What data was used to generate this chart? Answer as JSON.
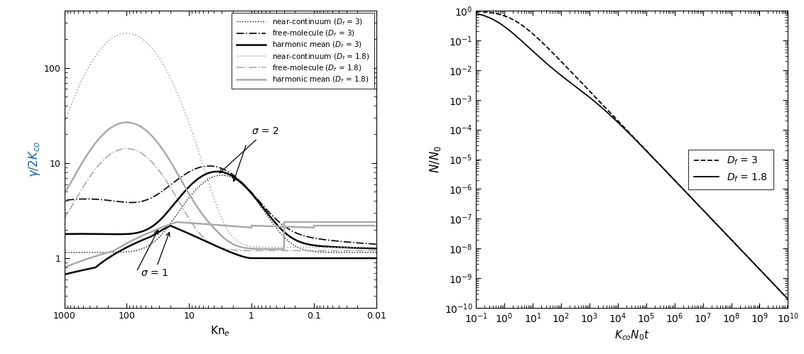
{
  "left_xlim": [
    1000,
    0.01
  ],
  "left_ylim": [
    0.3,
    400
  ],
  "left_xlabel": "Kn$_e$",
  "left_ylabel": "$\\gamma/2K_{co}$",
  "left_ylabel_color": "#1a5fa0",
  "right_xlim": [
    0.1,
    10000000000.0
  ],
  "right_ylim": [
    1e-10,
    1.0
  ],
  "right_xlabel": "$K_{co}N_0t$",
  "right_ylabel": "$N/N_0$",
  "sigma2_label": "$\\sigma$ = 2",
  "sigma1_label": "$\\sigma$ = 1",
  "legend_left": [
    {
      "label": "near-continuum ($D_f$ = 3)",
      "color": "black",
      "ls": "dotted",
      "lw": 1.0
    },
    {
      "label": "free-molecule ($D_f$ = 3)",
      "color": "black",
      "ls": "dashdot",
      "lw": 1.2
    },
    {
      "label": "harmonic mean ($D_f$ = 3)",
      "color": "black",
      "ls": "solid",
      "lw": 1.8
    },
    {
      "label": "near-continuum ($D_f$ = 1.8)",
      "color": "#aaaaaa",
      "ls": "dotted",
      "lw": 1.2
    },
    {
      "label": "free-molecule ($D_f$ = 1.8)",
      "color": "#aaaaaa",
      "ls": "dashdot",
      "lw": 1.2
    },
    {
      "label": "harmonic mean ($D_f$ = 1.8)",
      "color": "#aaaaaa",
      "ls": "solid",
      "lw": 1.8
    }
  ],
  "legend_right": [
    {
      "label": "$D_f$ = 3",
      "color": "black",
      "ls": "dashed",
      "lw": 1.3
    },
    {
      "label": "$D_f$ = 1.8",
      "color": "black",
      "ls": "solid",
      "lw": 1.3
    }
  ],
  "background_color": "#ffffff",
  "figsize": [
    11.32,
    4.99
  ],
  "dpi": 100
}
